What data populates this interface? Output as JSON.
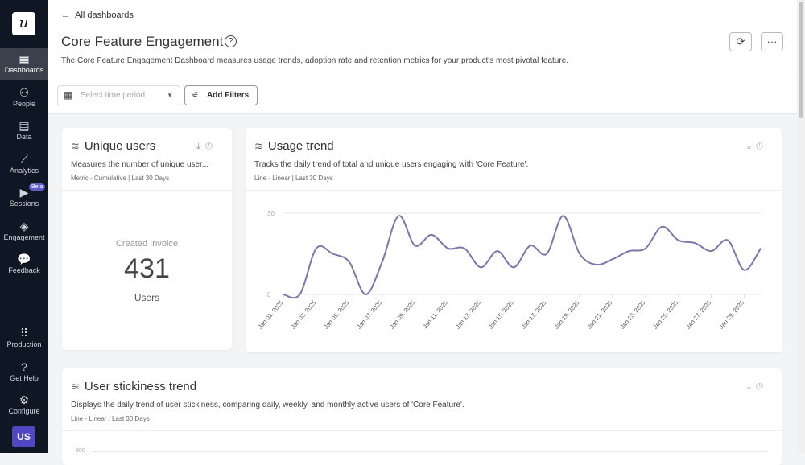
{
  "sidebar": {
    "logo": "u",
    "items": [
      {
        "label": "Dashboards",
        "icon": "dashboard-icon"
      },
      {
        "label": "People",
        "icon": "people-icon"
      },
      {
        "label": "Data",
        "icon": "data-icon"
      },
      {
        "label": "Analytics",
        "icon": "analytics-icon"
      },
      {
        "label": "Sessions",
        "icon": "play-icon",
        "badge": "Beta"
      },
      {
        "label": "Engagement",
        "icon": "layers-icon"
      },
      {
        "label": "Feedback",
        "icon": "chat-icon"
      }
    ],
    "bottom": [
      {
        "label": "Production",
        "icon": "grid-icon"
      },
      {
        "label": "Get Help",
        "icon": "help-icon"
      },
      {
        "label": "Configure",
        "icon": "gear-icon"
      }
    ],
    "avatar": "US",
    "active": "Dashboards"
  },
  "header": {
    "back": "All dashboards",
    "title": "Core Feature Engagement",
    "description": "The Core Feature Engagement Dashboard measures usage trends, adoption rate and retention metrics for your product's most pivotal feature."
  },
  "filters": {
    "time_placeholder": "Select time period",
    "add_filters": "Add Filters"
  },
  "cards": {
    "unique": {
      "title": "Unique users",
      "description": "Measures the number of unique user...",
      "meta": "Metric - Cumulative | Last 30 Days",
      "label": "Created Invoice",
      "value": "431",
      "unit": "Users"
    },
    "usage": {
      "title": "Usage trend",
      "description": "Tracks the daily trend of total and unique users engaging with 'Core Feature'.",
      "meta": "Line - Linear | Last 30 Days"
    },
    "stickiness": {
      "title": "User stickiness trend",
      "description": "Displays the daily trend of user stickiness, comparing daily, weekly, and monthly active users of 'Core Feature'.",
      "meta": "Line - Linear | Last 30 Days",
      "ytick_top": "800"
    }
  },
  "chart_data": {
    "type": "line",
    "series_color": "#7c74b4",
    "ylim": [
      0,
      30
    ],
    "yticks": [
      "0",
      "30"
    ],
    "grid": true,
    "x": [
      "Jan 01, 2025",
      "Jan 02, 2025",
      "Jan 03, 2025",
      "Jan 04, 2025",
      "Jan 05, 2025",
      "Jan 06, 2025",
      "Jan 07, 2025",
      "Jan 08, 2025",
      "Jan 09, 2025",
      "Jan 10, 2025",
      "Jan 11, 2025",
      "Jan 12, 2025",
      "Jan 13, 2025",
      "Jan 14, 2025",
      "Jan 15, 2025",
      "Jan 16, 2025",
      "Jan 17, 2025",
      "Jan 18, 2025",
      "Jan 19, 2025",
      "Jan 20, 2025",
      "Jan 21, 2025",
      "Jan 22, 2025",
      "Jan 23, 2025",
      "Jan 24, 2025",
      "Jan 25, 2025",
      "Jan 26, 2025",
      "Jan 27, 2025",
      "Jan 28, 2025",
      "Jan 29, 2025",
      "Jan 30, 2025"
    ],
    "xticks": [
      "Jan 01, 2025",
      "Jan 03, 2025",
      "Jan 05, 2025",
      "Jan 07, 2025",
      "Jan 09, 2025",
      "Jan 11, 2025",
      "Jan 13, 2025",
      "Jan 15, 2025",
      "Jan 17, 2025",
      "Jan 19, 2025",
      "Jan 21, 2025",
      "Jan 23, 2025",
      "Jan 25, 2025",
      "Jan 27, 2025",
      "Jan 29, 2025"
    ],
    "values": [
      0,
      0,
      17,
      15,
      12,
      0,
      12,
      29,
      18,
      22,
      17,
      17,
      10,
      16,
      10,
      18,
      15,
      29,
      15,
      11,
      13,
      16,
      17,
      25,
      20,
      19,
      16,
      20,
      9,
      17
    ]
  }
}
